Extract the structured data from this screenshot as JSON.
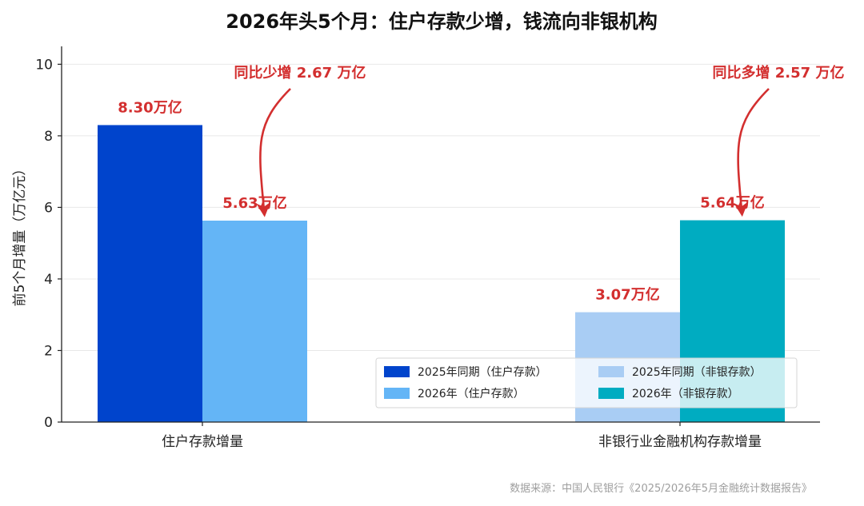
{
  "chart_data": {
    "type": "bar",
    "title": "2026年头5个月：住户存款少增，钱流向非银机构",
    "ylabel": "前5个月增量（万亿元）",
    "xlabel": "",
    "ylim": [
      0,
      10.5
    ],
    "yticks": [
      0,
      2,
      4,
      6,
      8,
      10
    ],
    "grid": true,
    "categories": [
      "住户存款增量",
      "非银行业金融机构存款增量"
    ],
    "bars": [
      {
        "series": "2025年同期（住户存款）",
        "category": "住户存款增量",
        "value": 8.3,
        "label": "8.30万亿",
        "color": "#0044cc"
      },
      {
        "series": "2026年（住户存款）",
        "category": "住户存款增量",
        "value": 5.63,
        "label": "5.63万亿",
        "color": "#64b5f6"
      },
      {
        "series": "2025年同期（非银存款）",
        "category": "非银行业金融机构存款增量",
        "value": 3.07,
        "label": "3.07万亿",
        "color": "#a9cdf4"
      },
      {
        "series": "2026年（非银存款）",
        "category": "非银行业金融机构存款增量",
        "value": 5.64,
        "label": "5.64万亿",
        "color": "#00acc1"
      }
    ],
    "legend": {
      "placement": "lower-right",
      "entries": [
        {
          "name": "2025年同期（住户存款）",
          "color": "#0044cc"
        },
        {
          "name": "2025年同期（非银存款）",
          "color": "#a9cdf4"
        },
        {
          "name": "2026年（住户存款）",
          "color": "#64b5f6"
        },
        {
          "name": "2026年（非银存款）",
          "color": "#00acc1"
        }
      ]
    },
    "annotations": [
      {
        "text": "同比少增 2.67 万亿",
        "target_bar": 1
      },
      {
        "text": "同比多增 2.57 万亿",
        "target_bar": 3
      }
    ],
    "annotation_color": "#d32f2f"
  },
  "source": "数据来源：中国人民银行《2025/2026年5月金融统计数据报告》"
}
